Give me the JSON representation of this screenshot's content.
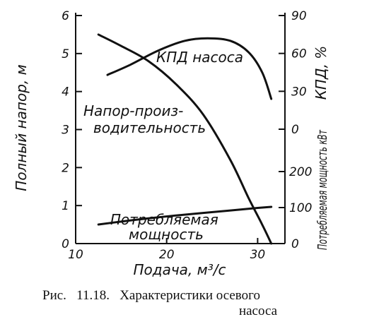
{
  "chart_data": {
    "type": "line",
    "xlabel": "Подача, м³/с",
    "x_ticks": [
      "10",
      "20",
      "30"
    ],
    "xlim": [
      10,
      33
    ],
    "left_axis": {
      "label": "Полный напор, м",
      "ylim": [
        0,
        6
      ],
      "ticks": [
        "0",
        "1",
        "2",
        "3",
        "4",
        "5",
        "6"
      ]
    },
    "right_axis_efficiency": {
      "label": "КПД, %",
      "ylim": [
        0,
        90
      ],
      "ticks": [
        "0",
        "30",
        "60",
        "90"
      ]
    },
    "right_axis_power": {
      "label": "Потребляемая мощность кВт",
      "ylim": [
        0,
        200
      ],
      "ticks": [
        "0",
        "100",
        "200"
      ]
    },
    "series": [
      {
        "name": "Напор-производительность",
        "axis": "head",
        "x": [
          12.5,
          15,
          18,
          21,
          24,
          27,
          29,
          30.5,
          31.5
        ],
        "y": [
          5.5,
          5.2,
          4.8,
          4.2,
          3.4,
          2.2,
          1.2,
          0.5,
          0.0
        ]
      },
      {
        "name": "КПД насоса",
        "axis": "efficiency",
        "x": [
          13.5,
          16,
          19,
          22,
          24.5,
          27,
          29,
          30.5,
          31.5
        ],
        "y": [
          43,
          51,
          62,
          70,
          72,
          70,
          61,
          45,
          24
        ]
      },
      {
        "name": "Потребляемая мощность",
        "axis": "power",
        "x": [
          12.5,
          15,
          18,
          21,
          24,
          27,
          30,
          31.5
        ],
        "y": [
          53,
          61,
          70,
          78,
          85,
          92,
          99,
          102
        ]
      }
    ],
    "annotations": {
      "efficiency_curve": "КПД насоса",
      "head_curve_line1": "Напор-произ-",
      "head_curve_line2": "водительность",
      "power_curve_line1": "Потребляемая",
      "power_curve_line2": "мощность"
    }
  },
  "caption": {
    "line1": "Рис.   11.18.   Характеристики осевого",
    "line2": "насоса"
  }
}
